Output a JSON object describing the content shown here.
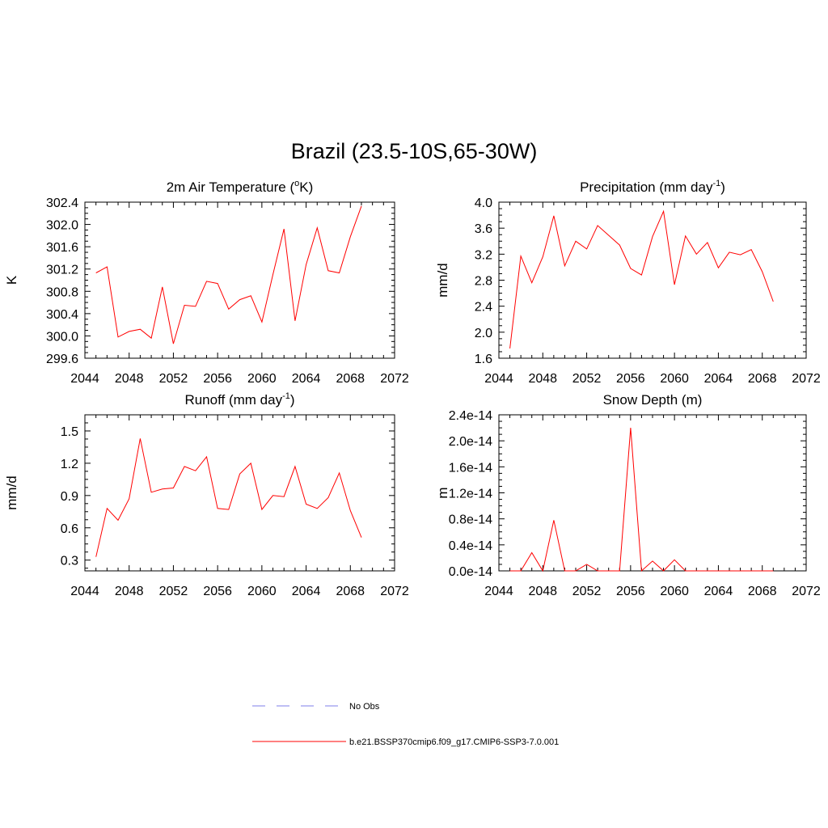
{
  "title": "Brazil (23.5-10S,65-30W)",
  "colors": {
    "model_line": "#ff0000",
    "obs_line": "#9999ee",
    "axis": "#000000"
  },
  "legend": [
    {
      "label": "No Obs",
      "style": "dashed",
      "color": "#9999ee"
    },
    {
      "label": "b.e21.BSSP370cmip6.f09_g17.CMIP6-SSP3-7.0.001",
      "style": "solid",
      "color": "#ff0000"
    }
  ],
  "chart_data": [
    {
      "type": "line",
      "title": "2m Air Temperature (",
      "title_sup": "o",
      "title_tail": "K)",
      "xlabel": "",
      "ylabel": "K",
      "xlim": [
        2044,
        2072
      ],
      "ylim": [
        299.6,
        302.4
      ],
      "xticks": [
        2044,
        2048,
        2052,
        2056,
        2060,
        2064,
        2068,
        2072
      ],
      "yticks": [
        "299.6",
        "300.0",
        "300.4",
        "300.8",
        "301.2",
        "301.6",
        "302.0",
        "302.4"
      ],
      "series": [
        {
          "x": [
            2045,
            2046,
            2047,
            2048,
            2049,
            2050,
            2051,
            2052,
            2053,
            2054,
            2055,
            2056,
            2057,
            2058,
            2059,
            2060,
            2061,
            2062,
            2063,
            2064,
            2065,
            2066,
            2067,
            2068,
            2069
          ],
          "values": [
            301.13,
            301.24,
            299.98,
            300.08,
            300.12,
            299.96,
            300.88,
            299.86,
            300.55,
            300.53,
            300.98,
            300.94,
            300.48,
            300.65,
            300.72,
            300.25,
            301.1,
            301.92,
            300.27,
            301.28,
            301.94,
            301.17,
            301.13,
            301.78,
            302.33
          ]
        }
      ]
    },
    {
      "type": "line",
      "title": "Precipitation (mm day",
      "title_sup": "-1",
      "title_tail": ")",
      "xlabel": "",
      "ylabel": "mm/d",
      "xlim": [
        2044,
        2072
      ],
      "ylim": [
        1.6,
        4.0
      ],
      "xticks": [
        2044,
        2048,
        2052,
        2056,
        2060,
        2064,
        2068,
        2072
      ],
      "yticks": [
        "1.6",
        "2.0",
        "2.4",
        "2.8",
        "3.2",
        "3.6",
        "4.0"
      ],
      "series": [
        {
          "x": [
            2045,
            2046,
            2047,
            2048,
            2049,
            2050,
            2051,
            2052,
            2053,
            2054,
            2055,
            2056,
            2057,
            2058,
            2059,
            2060,
            2061,
            2062,
            2063,
            2064,
            2065,
            2066,
            2067,
            2068,
            2069
          ],
          "values": [
            1.75,
            3.17,
            2.76,
            3.16,
            3.79,
            3.02,
            3.4,
            3.28,
            3.64,
            3.49,
            3.34,
            2.98,
            2.88,
            3.47,
            3.86,
            2.73,
            3.48,
            3.2,
            3.38,
            2.99,
            3.23,
            3.19,
            3.27,
            2.93,
            2.47
          ]
        }
      ]
    },
    {
      "type": "line",
      "title": "Runoff (mm day",
      "title_sup": "-1",
      "title_tail": ")",
      "xlabel": "",
      "ylabel": "mm/d",
      "xlim": [
        2044,
        2072
      ],
      "ylim": [
        0.2,
        1.65
      ],
      "xticks": [
        2044,
        2048,
        2052,
        2056,
        2060,
        2064,
        2068,
        2072
      ],
      "yticks": [
        "0.3",
        "0.6",
        "0.9",
        "1.2",
        "1.5"
      ],
      "yticks_at": [
        0.3,
        0.6,
        0.9,
        1.2,
        1.5
      ],
      "series": [
        {
          "x": [
            2045,
            2046,
            2047,
            2048,
            2049,
            2050,
            2051,
            2052,
            2053,
            2054,
            2055,
            2056,
            2057,
            2058,
            2059,
            2060,
            2061,
            2062,
            2063,
            2064,
            2065,
            2066,
            2067,
            2068,
            2069
          ],
          "values": [
            0.33,
            0.78,
            0.67,
            0.87,
            1.43,
            0.93,
            0.96,
            0.97,
            1.17,
            1.13,
            1.26,
            0.78,
            0.77,
            1.1,
            1.2,
            0.77,
            0.9,
            0.89,
            1.17,
            0.82,
            0.78,
            0.88,
            1.11,
            0.76,
            0.51
          ]
        }
      ]
    },
    {
      "type": "line",
      "title": "Snow Depth (m)",
      "title_sup": "",
      "title_tail": "",
      "xlabel": "",
      "ylabel": "m",
      "xlim": [
        2044,
        2072
      ],
      "ylim": [
        0,
        2.4e-14
      ],
      "xticks": [
        2044,
        2048,
        2052,
        2056,
        2060,
        2064,
        2068,
        2072
      ],
      "yticks": [
        "0.0e-14",
        "0.4e-14",
        "0.8e-14",
        "1.2e-14",
        "1.6e-14",
        "2.0e-14",
        "2.4e-14"
      ],
      "yticks_at": [
        0,
        4e-15,
        8e-15,
        1.2e-14,
        1.6e-14,
        2e-14,
        2.4e-14
      ],
      "series": [
        {
          "x": [
            2045,
            2046,
            2047,
            2048,
            2049,
            2050,
            2051,
            2052,
            2053,
            2054,
            2055,
            2056,
            2057,
            2058,
            2059,
            2060,
            2061,
            2062,
            2063,
            2064,
            2065,
            2066,
            2067,
            2068,
            2069
          ],
          "values": [
            0,
            0,
            2.8e-15,
            0,
            7.8e-15,
            0,
            0,
            1e-15,
            0,
            0,
            0,
            2.2e-14,
            0,
            1.5e-15,
            0,
            1.7e-15,
            0,
            0,
            0,
            0,
            0,
            0,
            0,
            0,
            0
          ]
        }
      ]
    }
  ]
}
